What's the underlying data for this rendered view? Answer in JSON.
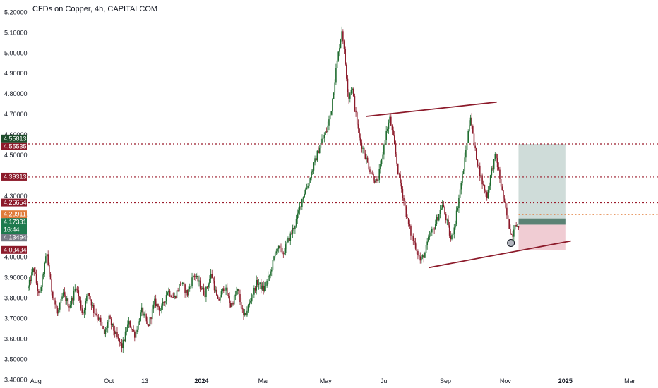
{
  "header": {
    "title": "CFDs on Copper, 4h, CAPITALCOM"
  },
  "colors": {
    "up": "#1e6b2e",
    "down": "#8c1a2a",
    "trendline": "#8c1a2a",
    "level": "#9b1b2b",
    "price_line": "#1e7a4e",
    "orange_line": "#e07b39",
    "profit_zone": "#9fb9b3",
    "loss_zone": "#e6aab5"
  },
  "chart_data": {
    "type": "candlestick",
    "title": "CFDs on Copper, 4h, CAPITALCOM",
    "y_range": [
      3.36,
      5.26
    ],
    "y_ticks": [
      "5.20000",
      "5.10000",
      "5.00000",
      "4.90000",
      "4.80000",
      "4.70000",
      "4.60000",
      "4.50000",
      "4.40000",
      "4.30000",
      "4.20000",
      "4.10000",
      "4.00000",
      "3.90000",
      "3.80000",
      "3.70000",
      "3.60000",
      "3.50000",
      "3.40000"
    ],
    "x_ticks": [
      {
        "label": "Aug",
        "t": 0.07,
        "bold": false
      },
      {
        "label": "Oct",
        "t": 0.74,
        "bold": false
      },
      {
        "label": "13",
        "t": 1.07,
        "bold": false
      },
      {
        "label": "2024",
        "t": 1.59,
        "bold": true
      },
      {
        "label": "Mar",
        "t": 2.16,
        "bold": false
      },
      {
        "label": "May",
        "t": 2.73,
        "bold": false
      },
      {
        "label": "Jul",
        "t": 3.27,
        "bold": false
      },
      {
        "label": "Sep",
        "t": 3.83,
        "bold": false
      },
      {
        "label": "Nov",
        "t": 4.38,
        "bold": false
      },
      {
        "label": "2025",
        "t": 4.93,
        "bold": true
      },
      {
        "label": "Mar",
        "t": 5.52,
        "bold": false
      }
    ],
    "price_path": [
      [
        0.0,
        3.85
      ],
      [
        0.05,
        3.95
      ],
      [
        0.1,
        3.8
      ],
      [
        0.13,
        3.9
      ],
      [
        0.17,
        4.02
      ],
      [
        0.21,
        3.85
      ],
      [
        0.27,
        3.72
      ],
      [
        0.32,
        3.82
      ],
      [
        0.38,
        3.76
      ],
      [
        0.44,
        3.86
      ],
      [
        0.5,
        3.72
      ],
      [
        0.55,
        3.83
      ],
      [
        0.6,
        3.74
      ],
      [
        0.65,
        3.7
      ],
      [
        0.7,
        3.62
      ],
      [
        0.74,
        3.7
      ],
      [
        0.78,
        3.65
      ],
      [
        0.82,
        3.6
      ],
      [
        0.86,
        3.56
      ],
      [
        0.92,
        3.68
      ],
      [
        0.98,
        3.62
      ],
      [
        1.04,
        3.74
      ],
      [
        1.1,
        3.66
      ],
      [
        1.16,
        3.78
      ],
      [
        1.22,
        3.74
      ],
      [
        1.28,
        3.84
      ],
      [
        1.34,
        3.8
      ],
      [
        1.4,
        3.88
      ],
      [
        1.46,
        3.82
      ],
      [
        1.52,
        3.92
      ],
      [
        1.56,
        3.88
      ],
      [
        1.62,
        3.82
      ],
      [
        1.68,
        3.92
      ],
      [
        1.74,
        3.78
      ],
      [
        1.8,
        3.86
      ],
      [
        1.86,
        3.76
      ],
      [
        1.92,
        3.84
      ],
      [
        1.98,
        3.7
      ],
      [
        2.02,
        3.76
      ],
      [
        2.06,
        3.82
      ],
      [
        2.1,
        3.88
      ],
      [
        2.16,
        3.84
      ],
      [
        2.22,
        3.92
      ],
      [
        2.28,
        4.05
      ],
      [
        2.34,
        4.02
      ],
      [
        2.4,
        4.1
      ],
      [
        2.46,
        4.18
      ],
      [
        2.52,
        4.3
      ],
      [
        2.56,
        4.35
      ],
      [
        2.62,
        4.45
      ],
      [
        2.66,
        4.52
      ],
      [
        2.7,
        4.58
      ],
      [
        2.74,
        4.62
      ],
      [
        2.78,
        4.72
      ],
      [
        2.82,
        4.9
      ],
      [
        2.86,
        5.05
      ],
      [
        2.88,
        5.12
      ],
      [
        2.91,
        4.95
      ],
      [
        2.94,
        4.78
      ],
      [
        2.97,
        4.84
      ],
      [
        3.0,
        4.72
      ],
      [
        3.04,
        4.58
      ],
      [
        3.08,
        4.52
      ],
      [
        3.12,
        4.45
      ],
      [
        3.16,
        4.4
      ],
      [
        3.2,
        4.36
      ],
      [
        3.24,
        4.46
      ],
      [
        3.28,
        4.6
      ],
      [
        3.32,
        4.68
      ],
      [
        3.36,
        4.55
      ],
      [
        3.4,
        4.4
      ],
      [
        3.44,
        4.3
      ],
      [
        3.48,
        4.18
      ],
      [
        3.52,
        4.1
      ],
      [
        3.56,
        4.05
      ],
      [
        3.6,
        3.98
      ],
      [
        3.64,
        4.02
      ],
      [
        3.68,
        4.1
      ],
      [
        3.72,
        4.14
      ],
      [
        3.76,
        4.2
      ],
      [
        3.8,
        4.26
      ],
      [
        3.84,
        4.18
      ],
      [
        3.88,
        4.08
      ],
      [
        3.92,
        4.18
      ],
      [
        3.96,
        4.32
      ],
      [
        4.0,
        4.45
      ],
      [
        4.03,
        4.58
      ],
      [
        4.06,
        4.7
      ],
      [
        4.09,
        4.55
      ],
      [
        4.13,
        4.45
      ],
      [
        4.17,
        4.36
      ],
      [
        4.21,
        4.3
      ],
      [
        4.25,
        4.42
      ],
      [
        4.29,
        4.5
      ],
      [
        4.33,
        4.38
      ],
      [
        4.37,
        4.26
      ],
      [
        4.41,
        4.16
      ],
      [
        4.44,
        4.1
      ],
      [
        4.47,
        4.18
      ],
      [
        4.5,
        4.13
      ]
    ],
    "trendlines": [
      {
        "from": [
          3.1,
          4.69
        ],
        "to": [
          4.3,
          4.76
        ]
      },
      {
        "from": [
          3.68,
          3.95
        ],
        "to": [
          4.98,
          4.08
        ]
      }
    ],
    "levels": [
      4.55535,
      4.39313,
      4.26654
    ],
    "current_price": 4.17331,
    "orange_level": 4.20911,
    "position": {
      "start_t": 4.5,
      "end_t": 4.93,
      "entry": 4.16,
      "take_profit": 4.555,
      "stop_loss": 4.03434
    },
    "marker": {
      "t": 4.43,
      "price": 4.07
    },
    "price_badges": [
      {
        "label": "4.55813",
        "price": 4.58,
        "color": "#1e4d2b"
      },
      {
        "label": "4.55535",
        "price": 4.55535,
        "color": "#8c1a2a"
      },
      {
        "label": "4.39313",
        "price": 4.39313,
        "color": "#8c1a2a"
      },
      {
        "label": "4.26654",
        "price": 4.26654,
        "color": "#8c1a2a"
      },
      {
        "label": "4.20911",
        "price": 4.20911,
        "color": "#e07b39"
      },
      {
        "label": "4.17331",
        "price": 4.17331,
        "color": "#1e7a4e"
      },
      {
        "label": "16:44",
        "price": 4.148,
        "color": "#1e7a4e"
      },
      {
        "label": "4.13494",
        "price": 4.13494,
        "color": "#787b86"
      },
      {
        "label": "4.03434",
        "price": 4.03434,
        "color": "#8c1a2a"
      }
    ]
  }
}
